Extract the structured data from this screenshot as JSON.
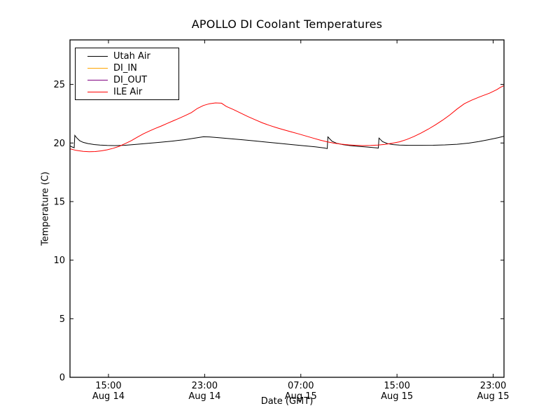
{
  "window": {
    "background": "#ffffff"
  },
  "chart_data": {
    "type": "line",
    "title": "APOLLO DI Coolant Temperatures",
    "xlabel": "Date (GMT)",
    "ylabel": "Temperature (C)",
    "x_unit": "hours_since_Aug14_0000_GMT",
    "xlim": [
      11.8,
      47.9
    ],
    "ylim": [
      0,
      28.8
    ],
    "y_ticks": [
      0,
      5,
      10,
      15,
      20,
      25
    ],
    "x_ticks": [
      {
        "x": 15,
        "time": "15:00",
        "date": "Aug 14"
      },
      {
        "x": 23,
        "time": "23:00",
        "date": "Aug 14"
      },
      {
        "x": 31,
        "time": "07:00",
        "date": "Aug 15"
      },
      {
        "x": 39,
        "time": "15:00",
        "date": "Aug 15"
      },
      {
        "x": 47,
        "time": "23:00",
        "date": "Aug 15"
      }
    ],
    "grid": false,
    "axis_color": "#000000",
    "tick_direction": "in",
    "legend_position": "upper-left",
    "series": [
      {
        "name": "Utah Air",
        "color": "#000000",
        "points": [
          [
            11.8,
            19.75
          ],
          [
            12.0,
            19.65
          ],
          [
            12.15,
            19.6
          ],
          [
            12.2,
            20.65
          ],
          [
            12.35,
            20.45
          ],
          [
            12.6,
            20.2
          ],
          [
            12.9,
            20.05
          ],
          [
            13.3,
            19.95
          ],
          [
            13.8,
            19.87
          ],
          [
            14.3,
            19.82
          ],
          [
            14.9,
            19.79
          ],
          [
            15.5,
            19.78
          ],
          [
            16.3,
            19.8
          ],
          [
            17.3,
            19.88
          ],
          [
            18.3,
            19.97
          ],
          [
            19.3,
            20.06
          ],
          [
            20.3,
            20.16
          ],
          [
            21.3,
            20.28
          ],
          [
            22.2,
            20.42
          ],
          [
            22.9,
            20.53
          ],
          [
            23.4,
            20.52
          ],
          [
            24.2,
            20.45
          ],
          [
            25.2,
            20.36
          ],
          [
            26.2,
            20.27
          ],
          [
            27.2,
            20.17
          ],
          [
            28.2,
            20.07
          ],
          [
            29.2,
            19.97
          ],
          [
            30.2,
            19.87
          ],
          [
            31.2,
            19.77
          ],
          [
            32.2,
            19.67
          ],
          [
            33.0,
            19.57
          ],
          [
            33.2,
            19.52
          ],
          [
            33.25,
            20.52
          ],
          [
            33.6,
            20.15
          ],
          [
            34.0,
            19.97
          ],
          [
            34.5,
            19.86
          ],
          [
            35.1,
            19.78
          ],
          [
            35.7,
            19.72
          ],
          [
            36.3,
            19.67
          ],
          [
            36.9,
            19.62
          ],
          [
            37.3,
            19.58
          ],
          [
            37.45,
            19.56
          ],
          [
            37.5,
            20.42
          ],
          [
            37.8,
            20.12
          ],
          [
            38.2,
            19.95
          ],
          [
            38.7,
            19.86
          ],
          [
            39.2,
            19.82
          ],
          [
            40.0,
            19.8
          ],
          [
            41.0,
            19.8
          ],
          [
            42.0,
            19.81
          ],
          [
            43.0,
            19.84
          ],
          [
            44.0,
            19.89
          ],
          [
            45.0,
            19.99
          ],
          [
            45.8,
            20.12
          ],
          [
            46.6,
            20.28
          ],
          [
            47.4,
            20.45
          ],
          [
            47.9,
            20.58
          ]
        ]
      },
      {
        "name": "DI_IN",
        "color": "#ffa500",
        "points": []
      },
      {
        "name": "DI_OUT",
        "color": "#800080",
        "points": []
      },
      {
        "name": "ILE Air",
        "color": "#ff0000",
        "points": [
          [
            11.8,
            19.5
          ],
          [
            12.3,
            19.37
          ],
          [
            12.9,
            19.28
          ],
          [
            13.4,
            19.25
          ],
          [
            13.9,
            19.27
          ],
          [
            14.4,
            19.33
          ],
          [
            14.9,
            19.42
          ],
          [
            15.4,
            19.55
          ],
          [
            15.9,
            19.72
          ],
          [
            16.4,
            19.95
          ],
          [
            16.9,
            20.2
          ],
          [
            17.4,
            20.5
          ],
          [
            17.9,
            20.78
          ],
          [
            18.4,
            21.02
          ],
          [
            18.9,
            21.25
          ],
          [
            19.4,
            21.45
          ],
          [
            19.9,
            21.68
          ],
          [
            20.4,
            21.9
          ],
          [
            20.9,
            22.12
          ],
          [
            21.4,
            22.35
          ],
          [
            21.9,
            22.6
          ],
          [
            22.4,
            22.95
          ],
          [
            22.9,
            23.2
          ],
          [
            23.4,
            23.35
          ],
          [
            23.9,
            23.42
          ],
          [
            24.4,
            23.4
          ],
          [
            24.8,
            23.12
          ],
          [
            25.4,
            22.85
          ],
          [
            26.0,
            22.55
          ],
          [
            26.6,
            22.25
          ],
          [
            27.2,
            21.98
          ],
          [
            27.8,
            21.72
          ],
          [
            28.4,
            21.5
          ],
          [
            29.0,
            21.3
          ],
          [
            29.6,
            21.12
          ],
          [
            30.2,
            20.95
          ],
          [
            30.8,
            20.78
          ],
          [
            31.4,
            20.6
          ],
          [
            32.0,
            20.42
          ],
          [
            32.6,
            20.25
          ],
          [
            33.2,
            20.1
          ],
          [
            33.8,
            19.98
          ],
          [
            34.4,
            19.9
          ],
          [
            35.0,
            19.84
          ],
          [
            35.6,
            19.8
          ],
          [
            36.2,
            19.78
          ],
          [
            36.8,
            19.79
          ],
          [
            37.4,
            19.82
          ],
          [
            38.0,
            19.88
          ],
          [
            38.6,
            19.98
          ],
          [
            39.2,
            20.1
          ],
          [
            39.8,
            20.3
          ],
          [
            40.4,
            20.55
          ],
          [
            41.0,
            20.85
          ],
          [
            41.6,
            21.18
          ],
          [
            42.2,
            21.55
          ],
          [
            42.8,
            21.95
          ],
          [
            43.4,
            22.4
          ],
          [
            44.0,
            22.9
          ],
          [
            44.6,
            23.35
          ],
          [
            45.2,
            23.65
          ],
          [
            45.9,
            23.95
          ],
          [
            46.7,
            24.25
          ],
          [
            47.3,
            24.55
          ],
          [
            47.6,
            24.75
          ],
          [
            47.9,
            24.9
          ]
        ]
      }
    ]
  }
}
